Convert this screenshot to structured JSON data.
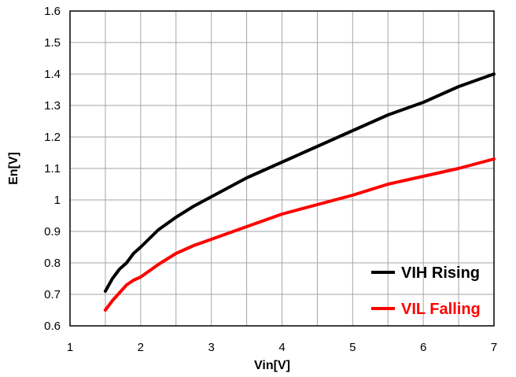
{
  "chart_data": {
    "type": "line",
    "xlabel": "Vin[V]",
    "ylabel": "En[V]",
    "xlim": [
      1,
      7
    ],
    "ylim": [
      0.6,
      1.6
    ],
    "xticks": [
      "1",
      "2",
      "3",
      "4",
      "5",
      "6",
      "7"
    ],
    "yticks": [
      "0.6",
      "0.7",
      "0.8",
      "0.9",
      "1",
      "1.1",
      "1.2",
      "1.3",
      "1.4",
      "1.5",
      "1.6"
    ],
    "grid": true,
    "legend_position": "bottom-right",
    "series": [
      {
        "name": "VIH Rising",
        "color": "#000000",
        "x": [
          1.5,
          1.6,
          1.7,
          1.8,
          1.9,
          2.0,
          2.25,
          2.5,
          2.75,
          3.0,
          3.5,
          4.0,
          4.5,
          5.0,
          5.5,
          6.0,
          6.5,
          7.0
        ],
        "y": [
          0.71,
          0.75,
          0.78,
          0.8,
          0.83,
          0.85,
          0.905,
          0.945,
          0.98,
          1.01,
          1.07,
          1.12,
          1.17,
          1.22,
          1.27,
          1.31,
          1.36,
          1.4
        ]
      },
      {
        "name": "VIL Falling",
        "color": "#ff0000",
        "x": [
          1.5,
          1.6,
          1.7,
          1.8,
          1.9,
          2.0,
          2.25,
          2.5,
          2.75,
          3.0,
          3.5,
          4.0,
          4.5,
          5.0,
          5.5,
          6.0,
          6.5,
          7.0
        ],
        "y": [
          0.65,
          0.68,
          0.705,
          0.73,
          0.745,
          0.755,
          0.795,
          0.83,
          0.855,
          0.875,
          0.915,
          0.955,
          0.985,
          1.015,
          1.05,
          1.075,
          1.1,
          1.13
        ]
      }
    ]
  }
}
